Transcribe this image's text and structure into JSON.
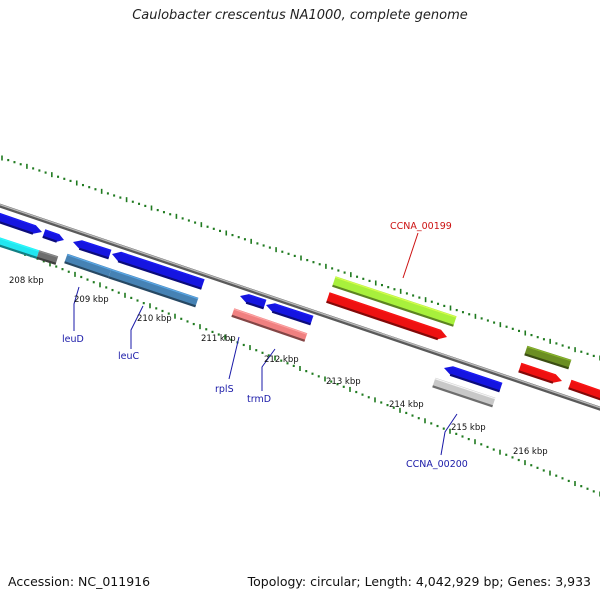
{
  "title": "Caulobacter crescentus NA1000, complete genome",
  "footer": {
    "accession": "Accession: NC_011916",
    "stats": "Topology: circular; Length: 4,042,929 bp; Genes: 3,933"
  },
  "colors": {
    "backbone": "#8a8a8a",
    "tick": "#1f7a1f",
    "label_blue": "#1a1aa8",
    "label_red": "#cc1111"
  },
  "scale_labels": [
    "208 kbp",
    "209 kbp",
    "210 kbp",
    "211 kbp",
    "212 kbp",
    "213 kbp",
    "214 kbp",
    "215 kbp",
    "216 kbp"
  ],
  "features": [
    {
      "id": "f1",
      "color": "#1515e0",
      "strand": "+",
      "labeled": false
    },
    {
      "id": "f2",
      "color": "#1515e0",
      "strand": "+",
      "labeled": false
    },
    {
      "id": "f3",
      "color": "#22e6f0",
      "strand": "-",
      "labeled": false
    },
    {
      "id": "f4",
      "color": "#6e6e6e",
      "strand": "-",
      "labeled": false
    },
    {
      "id": "f5",
      "color": "#1515e0",
      "strand": "+",
      "labeled": false
    },
    {
      "id": "f6",
      "color": "#1515e0",
      "strand": "+",
      "labeled": false
    },
    {
      "id": "leuD",
      "color": "#4682b4",
      "strand": "-",
      "labeled": true
    },
    {
      "id": "leuC",
      "color": "#4682b4",
      "strand": "-",
      "labeled": true
    },
    {
      "id": "f9",
      "color": "#1515e0",
      "strand": "+",
      "labeled": false
    },
    {
      "id": "f10",
      "color": "#1515e0",
      "strand": "+",
      "labeled": false
    },
    {
      "id": "rplS_trmD",
      "color": "#f08080",
      "strand": "-",
      "labeled": true
    },
    {
      "id": "CCNA_00199",
      "color": "#a8f03c",
      "strand": "+",
      "labeled": true
    },
    {
      "id": "f13",
      "color": "#ee1111",
      "strand": "+",
      "labeled": false
    },
    {
      "id": "f14",
      "color": "#1515e0",
      "strand": "+",
      "labeled": false
    },
    {
      "id": "CCNA_00200",
      "color": "#c8c8c8",
      "strand": "-",
      "labeled": true
    },
    {
      "id": "f16",
      "color": "#6b8e23",
      "strand": "+",
      "labeled": false
    },
    {
      "id": "f17",
      "color": "#ee1111",
      "strand": "+",
      "labeled": false
    },
    {
      "id": "f18",
      "color": "#ee1111",
      "strand": "+",
      "labeled": false
    }
  ],
  "gene_labels": [
    "leuD",
    "leuC",
    "rplS",
    "trmD",
    "CCNA_00199",
    "CCNA_00200"
  ]
}
